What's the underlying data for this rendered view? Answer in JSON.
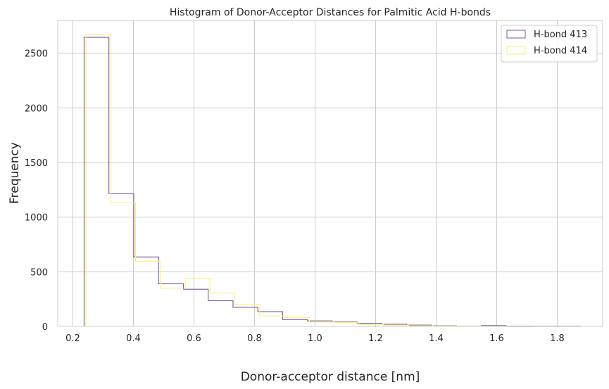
{
  "chart_data": {
    "type": "histogram",
    "title": "Histogram of Donor-Acceptor Distances for Palmitic Acid H-bonds",
    "xlabel": "Donor-acceptor distance [nm]",
    "ylabel": "Frequency",
    "xlim": [
      0.15,
      1.95
    ],
    "ylim": [
      0,
      2800
    ],
    "xticks": [
      0.2,
      0.4,
      0.6,
      0.8,
      1.0,
      1.2,
      1.4,
      1.6,
      1.8
    ],
    "xtick_labels": [
      "0.2",
      "0.4",
      "0.6",
      "0.8",
      "1.0",
      "1.2",
      "1.4",
      "1.6",
      "1.8"
    ],
    "yticks": [
      0,
      500,
      1000,
      1500,
      2000,
      2500
    ],
    "ytick_labels": [
      "0",
      "500",
      "1000",
      "1500",
      "2000",
      "2500"
    ],
    "grid": true,
    "legend_position": "top-right",
    "series": [
      {
        "name": "H-bond 413",
        "color": "#7b5a93",
        "bin_edges": [
          0.237,
          0.319,
          0.401,
          0.483,
          0.565,
          0.647,
          0.729,
          0.811,
          0.893,
          0.975,
          1.057,
          1.139,
          1.221,
          1.303,
          1.385,
          1.467,
          1.549,
          1.631,
          1.713,
          1.795,
          1.877
        ],
        "counts": [
          2645,
          1215,
          635,
          390,
          340,
          235,
          175,
          135,
          62,
          50,
          40,
          28,
          20,
          12,
          5,
          3,
          8,
          3,
          2,
          2
        ]
      },
      {
        "name": "H-bond 414",
        "color": "#fdee7a",
        "bin_edges": [
          0.243,
          0.325,
          0.407,
          0.489,
          0.571,
          0.653,
          0.735,
          0.817,
          0.899,
          0.981,
          1.063,
          1.145,
          1.227,
          1.309,
          1.391,
          1.473,
          1.555,
          1.637
        ],
        "counts": [
          2670,
          1130,
          595,
          350,
          440,
          305,
          200,
          95,
          80,
          40,
          35,
          18,
          10,
          6,
          3,
          2,
          1
        ]
      }
    ]
  }
}
